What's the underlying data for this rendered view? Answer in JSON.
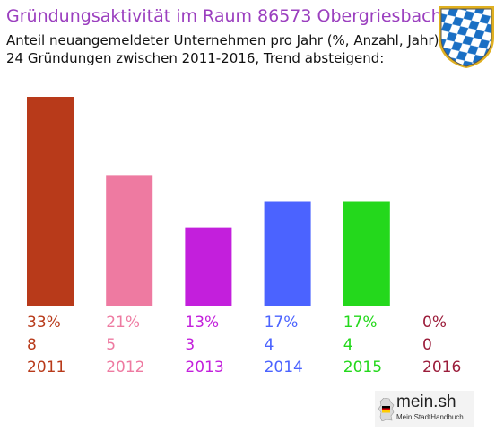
{
  "header": {
    "title": "Gründungsaktivität im Raum 86573 Obergriesbach",
    "subtitle_line1": "Anteil neuangemeldeter Unternehmen pro Jahr (%, Anzahl, Jahr)",
    "subtitle_line2": "24 Gründungen zwischen 2011-2016, Trend absteigend:"
  },
  "crest": {
    "icon": "bavarian-coat-of-arms-icon",
    "colors": [
      "#1a6fc4",
      "#ffffff",
      "#e0b020"
    ]
  },
  "brand": {
    "name": "mein.sh",
    "tagline": "Mein StadtHandbuch",
    "icon": "germany-map-icon"
  },
  "chart_data": {
    "type": "bar",
    "categories": [
      "2011",
      "2012",
      "2013",
      "2014",
      "2015",
      "2016"
    ],
    "percent_labels": [
      "33%",
      "21%",
      "13%",
      "17%",
      "17%",
      "0%"
    ],
    "values": [
      8,
      5,
      3,
      4,
      4,
      0
    ],
    "colors": [
      "#b83a1a",
      "#ee7aa1",
      "#c31fdc",
      "#4b63ff",
      "#24d81c",
      "#9b1c3a"
    ],
    "ylim": [
      0,
      8
    ],
    "grid": false,
    "legend": "none"
  }
}
